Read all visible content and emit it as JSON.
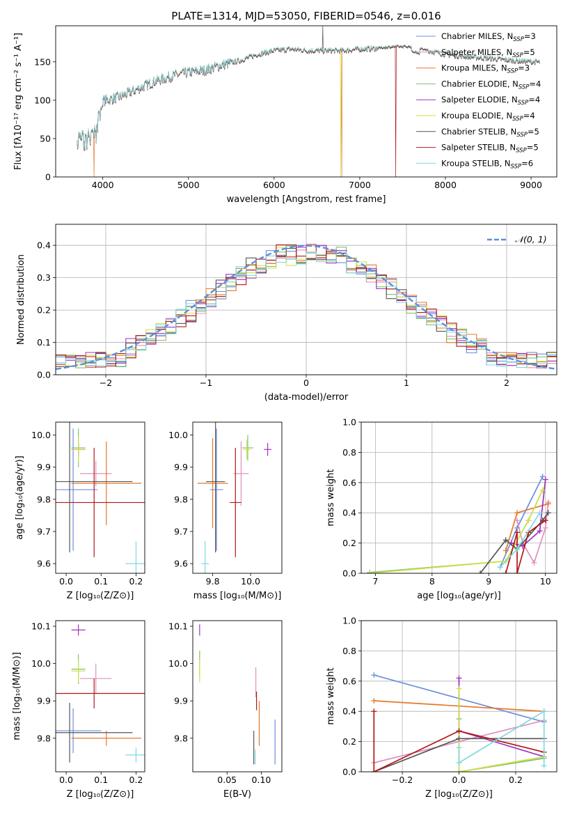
{
  "colors": {
    "chabrier_miles": "#6a8fdc",
    "salpeter_miles": "#e08fbf",
    "kroupa_miles": "#e5782a",
    "chabrier_elodie": "#7cc36a",
    "salpeter_elodie": "#a030c0",
    "kroupa_elodie": "#d4e04a",
    "chabrier_stelib": "#555555",
    "salpeter_stelib": "#b01818",
    "kroupa_stelib": "#80d8e0",
    "gauss": "#5b8fd9"
  },
  "chart_data": [
    {
      "id": "spectrum",
      "type": "line",
      "title": "PLATE=1314, MJD=53050, FIBERID=0546, z=0.016",
      "xlabel": "wavelength [Angstrom, rest frame]",
      "ylabel": "Flux [fλ10⁻¹⁷ erg cm⁻² s⁻¹ A⁻¹]",
      "xlim": [
        3450,
        9300
      ],
      "ylim": [
        0,
        197
      ],
      "xticks": [
        "4000",
        "5000",
        "6000",
        "7000",
        "8000",
        "9000"
      ],
      "yticks": [
        "0",
        "50",
        "100",
        "150"
      ],
      "legend_position": "right",
      "legend": [
        {
          "name": "Chabrier MILES, N",
          "sub": "SSP",
          "tail": "=3",
          "key": "chabrier_miles"
        },
        {
          "name": "Salpeter MILES, N",
          "sub": "SSP",
          "tail": "=5",
          "key": "salpeter_miles"
        },
        {
          "name": "Kroupa MILES, N",
          "sub": "SSP",
          "tail": "=3",
          "key": "kroupa_miles"
        },
        {
          "name": "Chabrier ELODIE, N",
          "sub": "SSP",
          "tail": "=4",
          "key": "chabrier_elodie"
        },
        {
          "name": "Salpeter ELODIE, N",
          "sub": "SSP",
          "tail": "=4",
          "key": "salpeter_elodie"
        },
        {
          "name": "Kroupa ELODIE, N",
          "sub": "SSP",
          "tail": "=4",
          "key": "kroupa_elodie"
        },
        {
          "name": "Chabrier STELIB, N",
          "sub": "SSP",
          "tail": "=5",
          "key": "chabrier_stelib"
        },
        {
          "name": "Salpeter STELIB, N",
          "sub": "SSP",
          "tail": "=5",
          "key": "salpeter_stelib"
        },
        {
          "name": "Kroupa STELIB, N",
          "sub": "SSP",
          "tail": "=6",
          "key": "kroupa_stelib"
        }
      ],
      "continuum": [
        [
          3700,
          55
        ],
        [
          3800,
          55
        ],
        [
          3900,
          62
        ],
        [
          3950,
          80
        ],
        [
          4000,
          100
        ],
        [
          4200,
          105
        ],
        [
          4400,
          115
        ],
        [
          4600,
          125
        ],
        [
          4800,
          132
        ],
        [
          5000,
          137
        ],
        [
          5200,
          140
        ],
        [
          5400,
          147
        ],
        [
          5600,
          152
        ],
        [
          5800,
          160
        ],
        [
          6000,
          165
        ],
        [
          6200,
          167
        ],
        [
          6400,
          165
        ],
        [
          6600,
          165
        ],
        [
          6800,
          165
        ],
        [
          7000,
          167
        ],
        [
          7200,
          168
        ],
        [
          7400,
          170
        ],
        [
          7600,
          170
        ],
        [
          7800,
          165
        ],
        [
          8000,
          160
        ],
        [
          8200,
          158
        ],
        [
          8500,
          155
        ],
        [
          8800,
          152
        ],
        [
          9100,
          150
        ]
      ],
      "dropouts": [
        [
          3900,
          "kroupa_miles"
        ],
        [
          6780,
          "kroupa_elodie"
        ],
        [
          6790,
          "kroupa_miles"
        ],
        [
          7420,
          "salpeter_stelib"
        ]
      ],
      "spike": [
        6570,
        197
      ]
    },
    {
      "id": "residuals",
      "type": "step",
      "xlabel": "(data-model)/error",
      "ylabel": "Normed distribution",
      "xlim": [
        -2.5,
        2.5
      ],
      "ylim": [
        0,
        0.465
      ],
      "xticks": [
        "−2",
        "−1",
        "0",
        "1",
        "2"
      ],
      "yticks": [
        "0.0",
        "0.1",
        "0.2",
        "0.3",
        "0.4"
      ],
      "grid": true,
      "legend_position": "top-right",
      "legend_label": "𝒩(0, 1)",
      "bin_width": 0.1
    },
    {
      "id": "age_vs_Z",
      "type": "errorbar",
      "xlabel": "Z [log₁₀(Z/Z⊙)]",
      "ylabel": "age  [log₁₀(age/yr)]",
      "xlim": [
        -0.03,
        0.225
      ],
      "ylim": [
        9.57,
        10.04
      ],
      "xticks": [
        "0.0",
        "0.1",
        "0.2"
      ],
      "yticks": [
        "9.6",
        "9.7",
        "9.8",
        "9.9",
        "10.0"
      ],
      "points": [
        {
          "key": "chabrier_miles",
          "x": 0.02,
          "y": 9.83,
          "xerr": 0.07,
          "yerr": 0.19
        },
        {
          "key": "salpeter_miles",
          "x": 0.085,
          "y": 9.88,
          "xerr": 0.045,
          "yerr": 0.04
        },
        {
          "key": "kroupa_miles",
          "x": 0.115,
          "y": 9.85,
          "xerr": 0.1,
          "yerr": 0.13
        },
        {
          "key": "chabrier_elodie",
          "x": 0.035,
          "y": 9.96,
          "xerr": 0.02,
          "yerr": 0.06
        },
        {
          "key": "salpeter_elodie",
          "x": 0.035,
          "y": 9.955,
          "xerr": 0.02,
          "yerr": 0.02
        },
        {
          "key": "kroupa_elodie",
          "x": 0.035,
          "y": 9.955,
          "xerr": 0.02,
          "yerr": 0.04
        },
        {
          "key": "chabrier_stelib",
          "x": 0.01,
          "y": 9.855,
          "xerr": 0.18,
          "yerr": 0.22
        },
        {
          "key": "salpeter_stelib",
          "x": 0.08,
          "y": 9.79,
          "xerr": 0.16,
          "yerr": 0.17
        },
        {
          "key": "kroupa_stelib",
          "x": 0.2,
          "y": 9.6,
          "xerr": 0.03,
          "yerr": 0.07
        }
      ]
    },
    {
      "id": "age_vs_mass",
      "type": "errorbar",
      "xlabel": "mass [log₁₀(M/M⊙)]",
      "ylabel": "",
      "xlim": [
        9.695,
        10.165
      ],
      "ylim": [
        9.57,
        10.04
      ],
      "xticks": [
        "9.8",
        "10.0"
      ],
      "yticks": [
        "9.6",
        "9.7",
        "9.8",
        "9.9",
        "10.0"
      ],
      "points": [
        {
          "key": "chabrier_miles",
          "x": 9.82,
          "y": 9.83,
          "xerr": 0.035,
          "yerr": 0.19
        },
        {
          "key": "salpeter_miles",
          "x": 9.95,
          "y": 9.88,
          "xerr": 0.04,
          "yerr": 0.1
        },
        {
          "key": "kroupa_miles",
          "x": 9.8,
          "y": 9.85,
          "xerr": 0.08,
          "yerr": 0.14
        },
        {
          "key": "chabrier_elodie",
          "x": 9.985,
          "y": 9.96,
          "xerr": 0.03,
          "yerr": 0.04
        },
        {
          "key": "salpeter_elodie",
          "x": 10.09,
          "y": 9.955,
          "xerr": 0.02,
          "yerr": 0.02
        },
        {
          "key": "kroupa_elodie",
          "x": 9.98,
          "y": 9.955,
          "xerr": 0.02,
          "yerr": 0.03
        },
        {
          "key": "chabrier_stelib",
          "x": 9.815,
          "y": 9.855,
          "xerr": 0.05,
          "yerr": 0.22
        },
        {
          "key": "salpeter_stelib",
          "x": 9.92,
          "y": 9.79,
          "xerr": 0.03,
          "yerr": 0.17
        },
        {
          "key": "kroupa_stelib",
          "x": 9.76,
          "y": 9.6,
          "xerr": 0.02,
          "yerr": 0.07
        }
      ]
    },
    {
      "id": "massweight_vs_age",
      "type": "line",
      "xlabel": "age  [log₁₀(age/yr)]",
      "ylabel": "mass weight",
      "xlim": [
        6.75,
        10.2
      ],
      "ylim": [
        0,
        1.0
      ],
      "xticks": [
        "7",
        "8",
        "9",
        "10"
      ],
      "yticks": [
        "0.0",
        "0.2",
        "0.4",
        "0.6",
        "0.8",
        "1.0"
      ],
      "grid": true,
      "series": [
        {
          "key": "chabrier_miles",
          "points": [
            [
              9.2,
              0.04
            ],
            [
              9.5,
              0.3
            ],
            [
              9.95,
              0.64
            ]
          ]
        },
        {
          "key": "salpeter_miles",
          "points": [
            [
              9.5,
              0.35
            ],
            [
              9.6,
              0.2
            ],
            [
              9.8,
              0.07
            ],
            [
              10.0,
              0.3
            ],
            [
              10.05,
              0.47
            ]
          ]
        },
        {
          "key": "kroupa_miles",
          "points": [
            [
              9.3,
              0.15
            ],
            [
              9.5,
              0.4
            ],
            [
              10.05,
              0.46
            ]
          ]
        },
        {
          "key": "chabrier_elodie",
          "points": [
            [
              6.9,
              0.005
            ],
            [
              9.3,
              0.08
            ],
            [
              9.7,
              0.35
            ],
            [
              9.95,
              0.55
            ]
          ]
        },
        {
          "key": "salpeter_elodie",
          "points": [
            [
              9.4,
              0.2
            ],
            [
              9.6,
              0.18
            ],
            [
              9.9,
              0.28
            ],
            [
              10.0,
              0.62
            ]
          ]
        },
        {
          "key": "kroupa_elodie",
          "points": [
            [
              6.9,
              0.0
            ],
            [
              9.3,
              0.08
            ],
            [
              9.7,
              0.35
            ],
            [
              9.95,
              0.55
            ]
          ]
        },
        {
          "key": "chabrier_stelib",
          "points": [
            [
              8.85,
              0.0
            ],
            [
              9.3,
              0.22
            ],
            [
              9.5,
              0.16
            ],
            [
              9.95,
              0.35
            ],
            [
              10.05,
              0.4
            ]
          ]
        },
        {
          "key": "salpeter_stelib",
          "points": [
            [
              9.3,
              0.0
            ],
            [
              9.5,
              0.27
            ],
            [
              9.5,
              0.0
            ],
            [
              9.7,
              0.27
            ],
            [
              10.0,
              0.35
            ]
          ]
        },
        {
          "key": "kroupa_stelib",
          "points": [
            [
              9.2,
              0.04
            ],
            [
              9.5,
              0.16
            ],
            [
              9.9,
              0.4
            ]
          ]
        }
      ]
    },
    {
      "id": "mass_vs_Z",
      "type": "errorbar",
      "xlabel": "Z [log₁₀(Z/Z⊙)]",
      "ylabel": "mass [log₁₀(M/M⊙)]",
      "xlim": [
        -0.03,
        0.225
      ],
      "ylim": [
        9.71,
        10.115
      ],
      "xticks": [
        "0.0",
        "0.1",
        "0.2"
      ],
      "yticks": [
        "9.8",
        "9.9",
        "10.0",
        "10.1"
      ],
      "points": [
        {
          "key": "chabrier_miles",
          "x": 0.02,
          "y": 9.82,
          "xerr": 0.08,
          "yerr": 0.06
        },
        {
          "key": "salpeter_miles",
          "x": 0.085,
          "y": 9.96,
          "xerr": 0.045,
          "yerr": 0.04
        },
        {
          "key": "kroupa_miles",
          "x": 0.115,
          "y": 9.8,
          "xerr": 0.1,
          "yerr": 0.02
        },
        {
          "key": "chabrier_elodie",
          "x": 0.035,
          "y": 9.985,
          "xerr": 0.02,
          "yerr": 0.04
        },
        {
          "key": "salpeter_elodie",
          "x": 0.035,
          "y": 10.09,
          "xerr": 0.02,
          "yerr": 0.015
        },
        {
          "key": "kroupa_elodie",
          "x": 0.035,
          "y": 9.98,
          "xerr": 0.02,
          "yerr": 0.03
        },
        {
          "key": "chabrier_stelib",
          "x": 0.01,
          "y": 9.815,
          "xerr": 0.18,
          "yerr": 0.08
        },
        {
          "key": "salpeter_stelib",
          "x": 0.08,
          "y": 9.92,
          "xerr": 0.16,
          "yerr": 0.04
        },
        {
          "key": "kroupa_stelib",
          "x": 0.2,
          "y": 9.755,
          "xerr": 0.03,
          "yerr": 0.02
        }
      ]
    },
    {
      "id": "mass_vs_ebv",
      "type": "errorbar",
      "xlabel": "E(B-V)",
      "ylabel": "",
      "xlim": [
        0.0,
        0.13
      ],
      "ylim": [
        9.71,
        10.115
      ],
      "xticks": [
        "0.05",
        "0.10"
      ],
      "yticks": [
        "9.8",
        "9.9",
        "10.0",
        "10.1"
      ],
      "points": [
        {
          "key": "chabrier_miles",
          "x": 0.12,
          "y": 9.79,
          "xerr": 0.0,
          "yerr": 0.06
        },
        {
          "key": "salpeter_miles",
          "x": 0.092,
          "y": 9.95,
          "xerr": 0.0,
          "yerr": 0.04
        },
        {
          "key": "kroupa_miles",
          "x": 0.097,
          "y": 9.84,
          "xerr": 0.0,
          "yerr": 0.06
        },
        {
          "key": "chabrier_elodie",
          "x": 0.01,
          "y": 10.0,
          "xerr": 0.0,
          "yerr": 0.035
        },
        {
          "key": "salpeter_elodie",
          "x": 0.01,
          "y": 10.09,
          "xerr": 0.0,
          "yerr": 0.015
        },
        {
          "key": "kroupa_elodie",
          "x": 0.01,
          "y": 9.98,
          "xerr": 0.0,
          "yerr": 0.03
        },
        {
          "key": "chabrier_stelib",
          "x": 0.089,
          "y": 9.775,
          "xerr": 0.0,
          "yerr": 0.045
        },
        {
          "key": "salpeter_stelib",
          "x": 0.093,
          "y": 9.9,
          "xerr": 0.0,
          "yerr": 0.025
        },
        {
          "key": "kroupa_stelib",
          "x": 0.091,
          "y": 9.75,
          "xerr": 0.0,
          "yerr": 0.02
        }
      ]
    },
    {
      "id": "massweight_vs_Z",
      "type": "line",
      "xlabel": "Z [log₁₀(Z/Z⊙)]",
      "ylabel": "mass weight",
      "xlim": [
        -0.345,
        0.345
      ],
      "ylim": [
        0,
        1.0
      ],
      "xticks": [
        "−0.2",
        "0.0",
        "0.2"
      ],
      "yticks": [
        "0.0",
        "0.2",
        "0.4",
        "0.6",
        "0.8",
        "1.0"
      ],
      "grid": true,
      "series": [
        {
          "key": "chabrier_miles",
          "points": [
            [
              -0.3,
              0.64
            ],
            [
              0.3,
              0.33
            ]
          ]
        },
        {
          "key": "salpeter_miles",
          "points": [
            [
              -0.3,
              0.06
            ],
            [
              0.0,
              0.2
            ],
            [
              0.3,
              0.34
            ]
          ]
        },
        {
          "key": "kroupa_miles",
          "points": [
            [
              -0.3,
              0.47
            ],
            [
              0.3,
              0.4
            ]
          ]
        },
        {
          "key": "chabrier_elodie",
          "points": [
            [
              0.0,
              0.35
            ],
            [
              0.0,
              0.0
            ],
            [
              0.3,
              0.09
            ]
          ]
        },
        {
          "key": "salpeter_elodie",
          "points": [
            [
              0.0,
              0.62
            ],
            [
              0.0,
              0.27
            ],
            [
              0.3,
              0.1
            ]
          ]
        },
        {
          "key": "kroupa_elodie",
          "points": [
            [
              0.0,
              0.55
            ],
            [
              0.0,
              0.0
            ],
            [
              0.3,
              0.1
            ]
          ]
        },
        {
          "key": "chabrier_stelib",
          "points": [
            [
              -0.3,
              0.0
            ],
            [
              0.0,
              0.22
            ],
            [
              0.3,
              0.22
            ]
          ]
        },
        {
          "key": "salpeter_stelib",
          "points": [
            [
              -0.3,
              0.4
            ],
            [
              -0.3,
              0.0
            ],
            [
              0.0,
              0.27
            ],
            [
              0.3,
              0.13
            ]
          ]
        },
        {
          "key": "kroupa_stelib",
          "points": [
            [
              0.0,
              0.16
            ],
            [
              0.0,
              0.06
            ],
            [
              0.3,
              0.4
            ],
            [
              0.3,
              0.04
            ]
          ]
        }
      ]
    }
  ]
}
